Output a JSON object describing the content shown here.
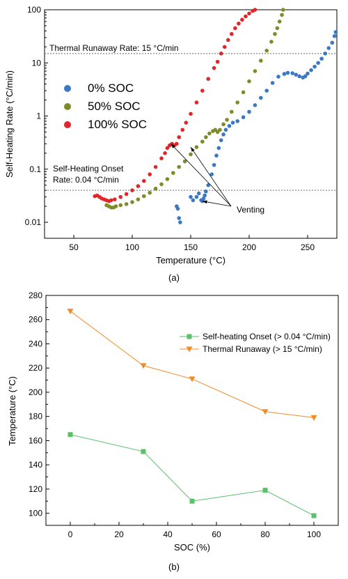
{
  "chart_data": [
    {
      "type": "scatter",
      "panel_label": "(a)",
      "xlabel": "Temperature (°C)",
      "ylabel": "Self-Heating Rate (°C/min)",
      "xlim": [
        25,
        275
      ],
      "ylim": [
        0.005,
        100
      ],
      "yscale": "log",
      "x_ticks": [
        50,
        100,
        150,
        200,
        250
      ],
      "y_ticks": [
        0.01,
        0.1,
        1,
        10,
        100
      ],
      "y_tick_labels": [
        "0.01",
        "0.1",
        "1",
        "10",
        "100"
      ],
      "legend_position": "left-middle",
      "series": [
        {
          "name": "0% SOC",
          "color": "#3a78c4",
          "points": [
            [
              138,
              0.02
            ],
            [
              139,
              0.018
            ],
            [
              140,
              0.012
            ],
            [
              141,
              0.01
            ],
            [
              150,
              0.03
            ],
            [
              152,
              0.026
            ],
            [
              155,
              0.03
            ],
            [
              157,
              0.035
            ],
            [
              159,
              0.026
            ],
            [
              160,
              0.025
            ],
            [
              161,
              0.028
            ],
            [
              162,
              0.032
            ],
            [
              163,
              0.038
            ],
            [
              165,
              0.05
            ],
            [
              168,
              0.08
            ],
            [
              170,
              0.12
            ],
            [
              172,
              0.18
            ],
            [
              174,
              0.25
            ],
            [
              176,
              0.35
            ],
            [
              178,
              0.45
            ],
            [
              180,
              0.55
            ],
            [
              183,
              0.65
            ],
            [
              186,
              0.75
            ],
            [
              190,
              0.8
            ],
            [
              195,
              0.95
            ],
            [
              200,
              1.2
            ],
            [
              205,
              1.6
            ],
            [
              210,
              2.2
            ],
            [
              215,
              3.0
            ],
            [
              220,
              4.2
            ],
            [
              225,
              5.5
            ],
            [
              230,
              6.2
            ],
            [
              233,
              6.5
            ],
            [
              237,
              6.4
            ],
            [
              240,
              6.0
            ],
            [
              243,
              5.6
            ],
            [
              246,
              5.3
            ],
            [
              248,
              5.6
            ],
            [
              250,
              6.3
            ],
            [
              253,
              7.3
            ],
            [
              256,
              8.5
            ],
            [
              259,
              10.0
            ],
            [
              262,
              12.0
            ],
            [
              265,
              15.0
            ],
            [
              268,
              19.0
            ],
            [
              271,
              24.0
            ],
            [
              273,
              32.0
            ],
            [
              274,
              38.0
            ]
          ]
        },
        {
          "name": "50% SOC",
          "color": "#7f8a2a",
          "points": [
            [
              78,
              0.021
            ],
            [
              80,
              0.02
            ],
            [
              82,
              0.019
            ],
            [
              84,
              0.019
            ],
            [
              86,
              0.02
            ],
            [
              90,
              0.021
            ],
            [
              95,
              0.022
            ],
            [
              100,
              0.024
            ],
            [
              105,
              0.027
            ],
            [
              110,
              0.031
            ],
            [
              115,
              0.036
            ],
            [
              120,
              0.043
            ],
            [
              125,
              0.052
            ],
            [
              130,
              0.065
            ],
            [
              135,
              0.085
            ],
            [
              140,
              0.11
            ],
            [
              145,
              0.14
            ],
            [
              150,
              0.19
            ],
            [
              155,
              0.26
            ],
            [
              160,
              0.33
            ],
            [
              163,
              0.4
            ],
            [
              166,
              0.47
            ],
            [
              169,
              0.52
            ],
            [
              171,
              0.55
            ],
            [
              173,
              0.5
            ],
            [
              175,
              0.55
            ],
            [
              178,
              0.7
            ],
            [
              181,
              0.85
            ],
            [
              185,
              1.2
            ],
            [
              190,
              1.8
            ],
            [
              195,
              2.8
            ],
            [
              200,
              4.5
            ],
            [
              205,
              7.0
            ],
            [
              210,
              11.0
            ],
            [
              215,
              17.0
            ],
            [
              219,
              25.0
            ],
            [
              222,
              35.0
            ],
            [
              224,
              45.0
            ],
            [
              226,
              60.0
            ],
            [
              228,
              80.0
            ],
            [
              229,
              100.0
            ]
          ]
        },
        {
          "name": "100% SOC",
          "color": "#e0262a",
          "points": [
            [
              68,
              0.031
            ],
            [
              70,
              0.032
            ],
            [
              72,
              0.03
            ],
            [
              74,
              0.028
            ],
            [
              76,
              0.027
            ],
            [
              78,
              0.026
            ],
            [
              80,
              0.025
            ],
            [
              82,
              0.026
            ],
            [
              85,
              0.027
            ],
            [
              90,
              0.03
            ],
            [
              95,
              0.034
            ],
            [
              100,
              0.04
            ],
            [
              105,
              0.048
            ],
            [
              110,
              0.06
            ],
            [
              115,
              0.08
            ],
            [
              120,
              0.11
            ],
            [
              125,
              0.16
            ],
            [
              128,
              0.2
            ],
            [
              130,
              0.25
            ],
            [
              132,
              0.28
            ],
            [
              134,
              0.3
            ],
            [
              136,
              0.28
            ],
            [
              138,
              0.3
            ],
            [
              140,
              0.4
            ],
            [
              143,
              0.55
            ],
            [
              146,
              0.75
            ],
            [
              150,
              1.1
            ],
            [
              155,
              1.8
            ],
            [
              160,
              3.0
            ],
            [
              165,
              5.0
            ],
            [
              170,
              8.0
            ],
            [
              173,
              10.5
            ],
            [
              176,
              15.0
            ],
            [
              179,
              20.0
            ],
            [
              182,
              27.0
            ],
            [
              185,
              35.0
            ],
            [
              188,
              45.0
            ],
            [
              191,
              55.0
            ],
            [
              194,
              65.0
            ],
            [
              197,
              75.0
            ],
            [
              200,
              85.0
            ],
            [
              203,
              95.0
            ],
            [
              205,
              100.0
            ]
          ]
        }
      ],
      "reference_lines": [
        {
          "y": 15,
          "label": "Thermal Runaway Rate: 15 °C/min"
        },
        {
          "y": 0.04,
          "label_lines": [
            "Self-Heating Onset",
            "Rate: 0.04 °C/min"
          ]
        }
      ],
      "annotation": {
        "text": "Venting",
        "arrow_targets": [
          [
            133,
            0.3
          ],
          [
            150,
            0.26
          ],
          [
            160,
            0.025
          ]
        ]
      }
    },
    {
      "type": "line",
      "panel_label": "(b)",
      "xlabel": "SOC (%)",
      "ylabel": "Temperature (°C)",
      "xlim": [
        -10,
        110
      ],
      "ylim": [
        90,
        280
      ],
      "x_ticks": [
        0,
        20,
        40,
        60,
        80,
        100
      ],
      "y_ticks": [
        100,
        120,
        140,
        160,
        180,
        200,
        220,
        240,
        260,
        280
      ],
      "legend_position": "top-right",
      "x": [
        0,
        30,
        50,
        80,
        100
      ],
      "series": [
        {
          "name": "Self-heating Onset (> 0.04 °C/min)",
          "color": "#5cbf6a",
          "marker": "square",
          "values": [
            165,
            151,
            110,
            119,
            98
          ]
        },
        {
          "name": "Thermal Runaway (> 15 °C/min)",
          "color": "#f08c28",
          "marker": "triangle-down",
          "values": [
            267,
            222,
            211,
            184,
            179
          ]
        }
      ]
    }
  ]
}
